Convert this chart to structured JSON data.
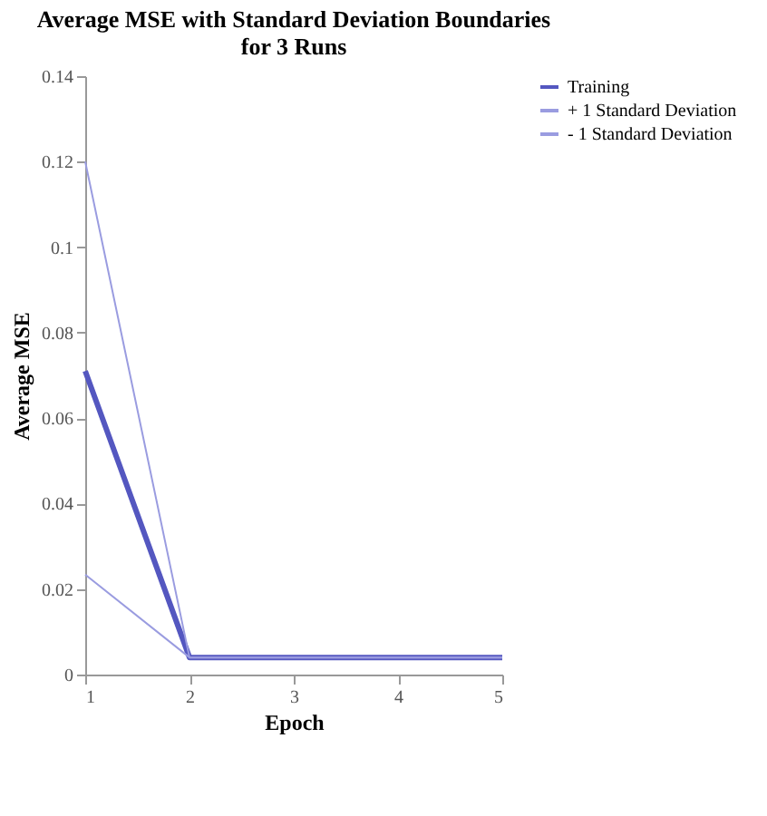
{
  "chart_data": {
    "type": "line",
    "title": [
      "Average MSE with Standard Deviation Boundaries",
      "for 3 Runs"
    ],
    "xlabel": "Epoch",
    "ylabel": "Average MSE",
    "x": [
      1,
      2,
      3,
      4,
      5
    ],
    "xlim": [
      1,
      5
    ],
    "xticks": [
      1,
      2,
      3,
      4,
      5
    ],
    "ylim": [
      0,
      0.14
    ],
    "yticks": [
      0,
      0.02,
      0.04,
      0.06,
      0.08,
      0.1,
      0.12,
      0.14
    ],
    "series": [
      {
        "name": "Training",
        "color": "#5457c0",
        "values": [
          0.071,
          0.004,
          0.004,
          0.004,
          0.004
        ]
      },
      {
        "name": "+ 1 Standard Deviation",
        "color": "#9a9ce0",
        "values": [
          0.12,
          0.004,
          0.004,
          0.004,
          0.004
        ]
      },
      {
        "name": "- 1 Standard Deviation",
        "color": "#9a9ce0",
        "values": [
          0.0234,
          0.004,
          0.004,
          0.004,
          0.004
        ]
      }
    ],
    "grid": false,
    "legend": "right",
    "marker": "none",
    "line_style": "solid"
  }
}
